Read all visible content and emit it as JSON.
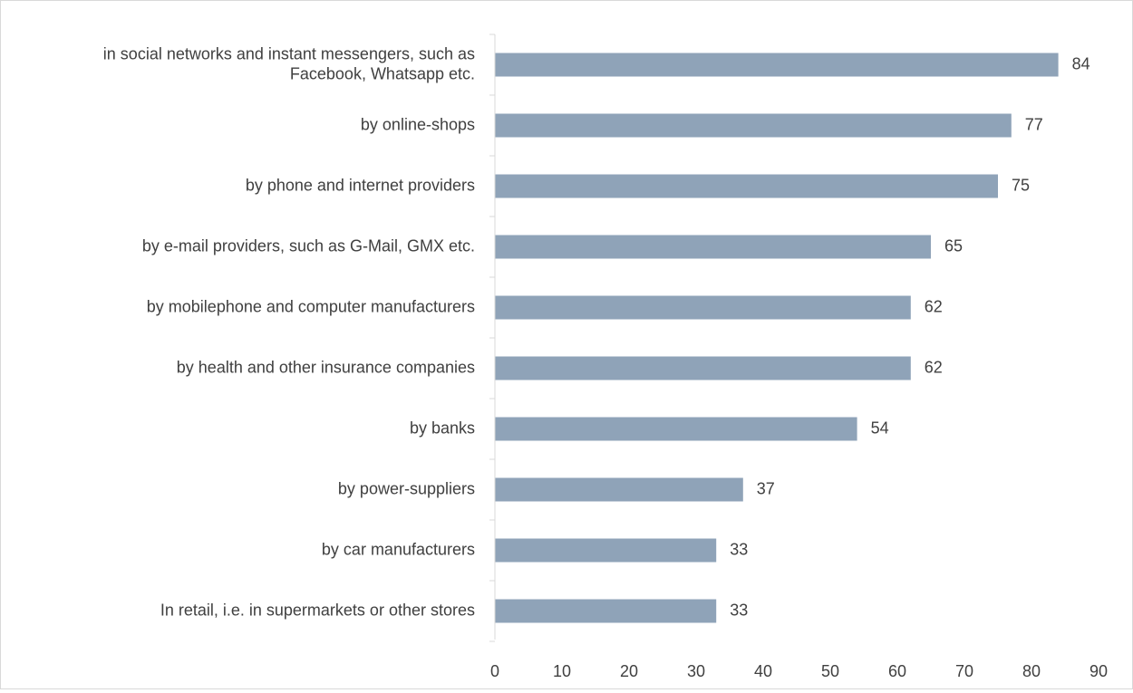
{
  "chart_data": {
    "type": "bar",
    "orientation": "horizontal",
    "categories": [
      "in social networks and instant messengers, such as Facebook, Whatsapp etc.",
      "by online-shops",
      "by phone and internet providers",
      "by e-mail providers, such as G-Mail, GMX etc.",
      "by mobilephone and computer manufacturers",
      "by health and other insurance companies",
      "by banks",
      "by power-suppliers",
      "by car manufacturers",
      "In retail, i.e. in supermarkets or other stores"
    ],
    "category_lines": [
      [
        "in social networks and instant messengers, such as",
        "Facebook, Whatsapp etc."
      ],
      [
        "by online-shops"
      ],
      [
        "by phone and internet providers"
      ],
      [
        "by e-mail providers, such as G-Mail, GMX etc."
      ],
      [
        "by mobilephone and computer manufacturers"
      ],
      [
        "by health and other insurance companies"
      ],
      [
        "by banks"
      ],
      [
        "by power-suppliers"
      ],
      [
        "by car manufacturers"
      ],
      [
        "In retail, i.e. in supermarkets or other stores"
      ]
    ],
    "values": [
      84,
      77,
      75,
      65,
      62,
      62,
      54,
      37,
      33,
      33
    ],
    "data_labels": [
      "84",
      "77",
      "75",
      "65",
      "62",
      "62",
      "54",
      "37",
      "33",
      "33"
    ],
    "xticks": [
      0,
      10,
      20,
      30,
      40,
      50,
      60,
      70,
      80,
      90
    ],
    "xtick_labels": [
      "0",
      "10",
      "20",
      "30",
      "40",
      "50",
      "60",
      "70",
      "80",
      "90"
    ],
    "xlim": [
      0,
      90
    ],
    "title": "",
    "xlabel": "",
    "ylabel": "",
    "grid": false,
    "legend": "none",
    "colors": {
      "bar": "#8fa3b8",
      "axis": "#d9d9d9",
      "text": "#404040"
    }
  }
}
